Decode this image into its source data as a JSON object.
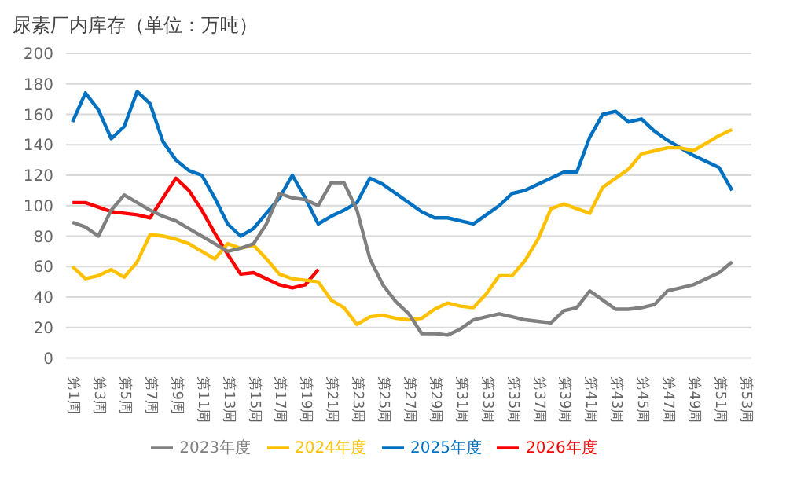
{
  "chart_data": {
    "type": "line",
    "title": "尿素厂内库存（单位：万吨）",
    "categories": [
      "第1周",
      null,
      "第3周",
      null,
      "第5周",
      null,
      "第7周",
      null,
      "第9周",
      null,
      "第11周",
      null,
      "第13周",
      null,
      "第15周",
      null,
      "第17周",
      null,
      "第19周",
      null,
      "第21周",
      null,
      "第23周",
      null,
      "第25周",
      null,
      "第27周",
      null,
      "第29周",
      null,
      "第31周",
      null,
      "第33周",
      null,
      "第35周",
      null,
      "第37周",
      null,
      "第39周",
      null,
      "第41周",
      null,
      "第43周",
      null,
      "第45周",
      null,
      "第47周",
      null,
      "第49周",
      null,
      "第51周",
      null,
      "第53周"
    ],
    "series": [
      {
        "name": "2026年度",
        "color": "#ff0000",
        "values": [
          102,
          102,
          99,
          96,
          95,
          94,
          92,
          105,
          118,
          110,
          97,
          82,
          68,
          55,
          56,
          52,
          48,
          46,
          48,
          58,
          null,
          null,
          null,
          null,
          null,
          null,
          null,
          null,
          null,
          null,
          null,
          null,
          null,
          null,
          null,
          null,
          null,
          null,
          null,
          null,
          null,
          null,
          null,
          null,
          null,
          null,
          null,
          null,
          null,
          null,
          null,
          null,
          null
        ]
      },
      {
        "name": "2025年度",
        "color": "#0070c0",
        "values": [
          155,
          174,
          163,
          144,
          152,
          175,
          167,
          142,
          130,
          123,
          120,
          105,
          88,
          80,
          85,
          95,
          105,
          120,
          105,
          88,
          93,
          97,
          102,
          118,
          114,
          108,
          102,
          96,
          92,
          92,
          90,
          88,
          94,
          100,
          108,
          110,
          114,
          118,
          122,
          122,
          145,
          160,
          162,
          155,
          157,
          149,
          143,
          138,
          133,
          129,
          125,
          110,
          null
        ]
      },
      {
        "name": "2024年度",
        "color": "#ffc000",
        "values": [
          60,
          52,
          54,
          58,
          53,
          63,
          81,
          80,
          78,
          75,
          70,
          65,
          75,
          72,
          74,
          65,
          55,
          52,
          51,
          50,
          38,
          33,
          22,
          27,
          28,
          26,
          25,
          26,
          32,
          36,
          34,
          33,
          42,
          54,
          54,
          64,
          78,
          98,
          101,
          98,
          95,
          112,
          118,
          124,
          134,
          136,
          138,
          138,
          136,
          141,
          146,
          150,
          null
        ]
      },
      {
        "name": "2023年度",
        "color": "#808080",
        "values": [
          89,
          86,
          80,
          97,
          107,
          102,
          97,
          93,
          90,
          85,
          80,
          75,
          70,
          72,
          75,
          88,
          108,
          105,
          104,
          100,
          115,
          115,
          97,
          65,
          48,
          37,
          29,
          16,
          16,
          15,
          19,
          25,
          27,
          29,
          27,
          25,
          24,
          23,
          31,
          33,
          44,
          38,
          32,
          32,
          33,
          35,
          44,
          46,
          48,
          52,
          56,
          63,
          null
        ]
      }
    ],
    "ylim": [
      0,
      200
    ],
    "yticks": [
      0,
      20,
      40,
      60,
      80,
      100,
      120,
      140,
      160,
      180,
      200
    ],
    "grid": "y",
    "legend": "bottom",
    "marker": "none",
    "line_style": "solid"
  }
}
